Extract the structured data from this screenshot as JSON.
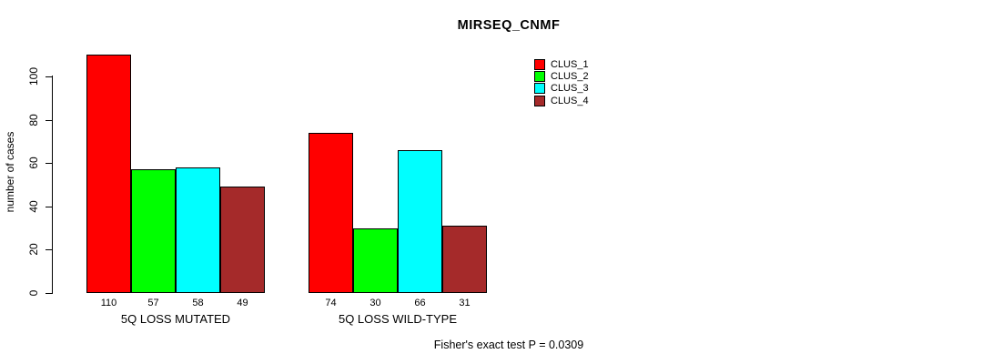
{
  "chart_data": {
    "type": "bar",
    "title": "MIRSEQ_CNMF",
    "ylabel": "number of cases",
    "yticks": [
      0,
      20,
      40,
      60,
      80,
      100
    ],
    "ylim": [
      0,
      110
    ],
    "grid": false,
    "legend_position": "top-right",
    "categories": [
      "5Q LOSS MUTATED",
      "5Q LOSS WILD-TYPE"
    ],
    "series": [
      {
        "name": "CLUS_1",
        "color": "#ff0000",
        "values": [
          110,
          74
        ]
      },
      {
        "name": "CLUS_2",
        "color": "#00ff00",
        "values": [
          57,
          30
        ]
      },
      {
        "name": "CLUS_3",
        "color": "#00ffff",
        "values": [
          58,
          66
        ]
      },
      {
        "name": "CLUS_4",
        "color": "#a52a2a",
        "values": [
          49,
          31
        ]
      }
    ],
    "bar_value_labels": {
      "5Q LOSS MUTATED": [
        110,
        57,
        58,
        49
      ],
      "5Q LOSS WILD-TYPE": [
        74,
        30,
        66,
        31
      ]
    },
    "footnote": "Fisher's exact test P = 0.0309"
  }
}
